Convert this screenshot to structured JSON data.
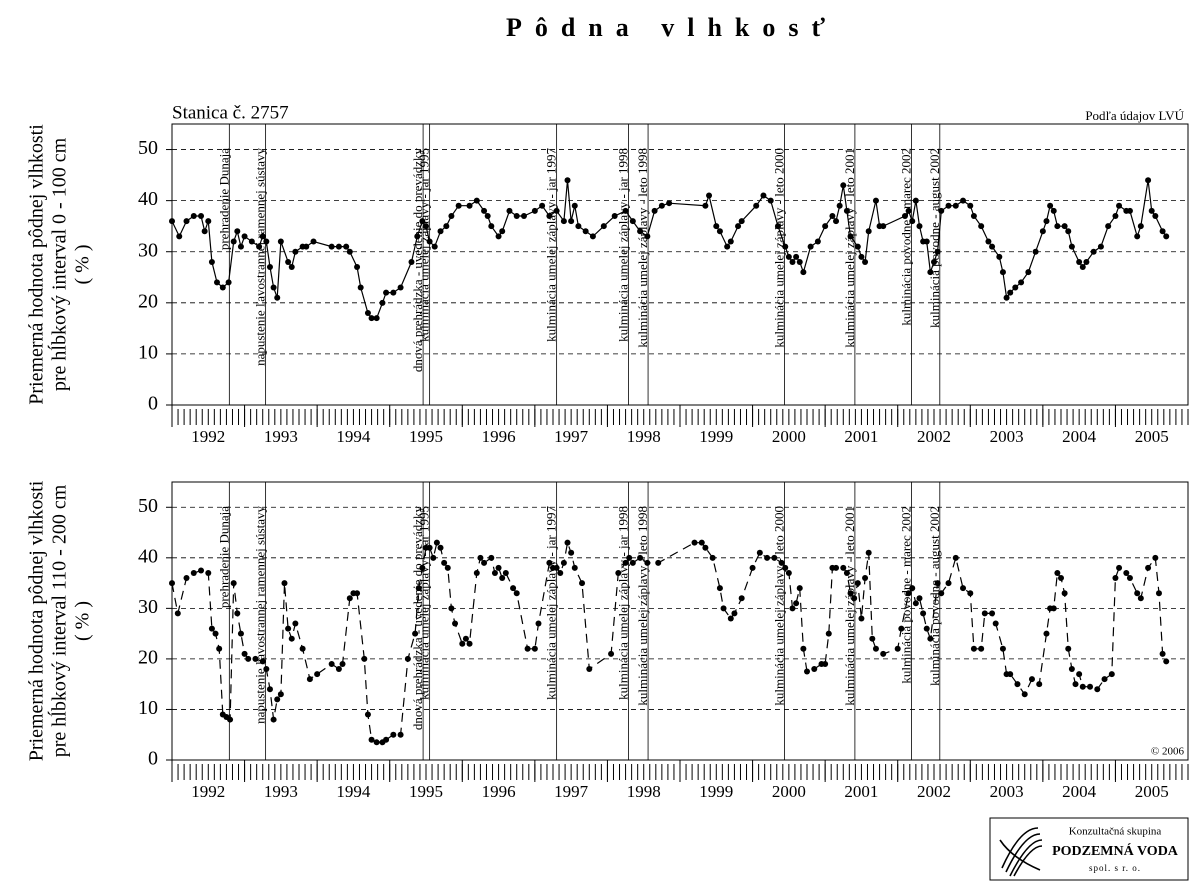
{
  "title": "Pôdna vlhkosť",
  "logo": {
    "line1": "Konzultačná skupina",
    "line2": "PODZEMNÁ VODA",
    "line3": "spol. s r. o."
  },
  "chart_data": [
    {
      "type": "line",
      "station": "Stanica č. 2757",
      "source": "Podľa údajov LVÚ",
      "ylabel": [
        "Priemerná hodnota pôdnej vlhkosti",
        "pre hĺbkový interval 0 - 100 cm",
        "( % )"
      ],
      "xlim": [
        1992,
        2006
      ],
      "xticks": [
        1992,
        1993,
        1994,
        1995,
        1996,
        1997,
        1998,
        1999,
        2000,
        2001,
        2002,
        2003,
        2004,
        2005
      ],
      "ylim": [
        0,
        55
      ],
      "yticks": [
        0,
        10,
        20,
        30,
        40,
        50
      ],
      "grid": true,
      "annotations": [
        {
          "x": 1992.79,
          "text": "prehradenie Dunaja"
        },
        {
          "x": 1993.29,
          "text": "napustenie ľavostrannej ramennej sústavy"
        },
        {
          "x": 1995.46,
          "text": "dnová prehrádzka - uvedenie do prevádzky"
        },
        {
          "x": 1995.55,
          "text": "kulminácia umelej záplavy - jar 1995"
        },
        {
          "x": 1997.3,
          "text": "kulminácia umelej záplavy - jar 1997"
        },
        {
          "x": 1998.29,
          "text": "kulminácia umelej záplavy - jar 1998"
        },
        {
          "x": 1998.56,
          "text": "kulminácia umelej záplavy - leto 1998"
        },
        {
          "x": 2000.44,
          "text": "kulminácia umelej záplavy - leto 2000"
        },
        {
          "x": 2001.41,
          "text": "kulminácia umelej záplavy - leto 2001"
        },
        {
          "x": 2002.19,
          "text": "kulminácia povodne - marec 2002"
        },
        {
          "x": 2002.58,
          "text": "kulminácia povodne - august 2002"
        }
      ],
      "series": [
        {
          "color": "#000000",
          "line_style": "solid",
          "x": [
            1992.0,
            1992.1,
            1992.2,
            1992.3,
            1992.4,
            1992.45,
            1992.5,
            1992.55,
            1992.62,
            1992.7,
            1992.78,
            1992.85,
            1992.9,
            1992.95,
            1993.0,
            1993.1,
            1993.2,
            1993.25,
            1993.3,
            1993.35,
            1993.4,
            1993.45,
            1993.5,
            1993.6,
            1993.65,
            1993.7,
            1993.8,
            1993.85,
            1993.95,
            1994.2,
            1994.3,
            1994.4,
            1994.45,
            1994.55,
            1994.6,
            1994.7,
            1994.75,
            1994.82,
            1994.9,
            1994.95,
            1995.05,
            1995.15,
            1995.3,
            1995.38,
            1995.45,
            1995.5,
            1995.55,
            1995.62,
            1995.7,
            1995.78,
            1995.85,
            1995.95,
            1996.1,
            1996.2,
            1996.3,
            1996.35,
            1996.4,
            1996.5,
            1996.55,
            1996.65,
            1996.75,
            1996.85,
            1997.0,
            1997.1,
            1997.2,
            1997.3,
            1997.4,
            1997.45,
            1997.5,
            1997.55,
            1997.6,
            1997.7,
            1997.8,
            1997.95,
            1998.1,
            1998.25,
            1998.35,
            1998.45,
            1998.55,
            1998.65,
            1998.75,
            1998.85,
            1999.35,
            1999.4,
            1999.5,
            1999.55,
            1999.65,
            1999.7,
            1999.8,
            1999.85,
            2000.05,
            2000.15,
            2000.25,
            2000.35,
            2000.45,
            2000.5,
            2000.55,
            2000.6,
            2000.65,
            2000.7,
            2000.8,
            2000.9,
            2001.0,
            2001.1,
            2001.15,
            2001.2,
            2001.25,
            2001.3,
            2001.35,
            2001.45,
            2001.5,
            2001.55,
            2001.6,
            2001.7,
            2001.75,
            2001.8,
            2002.1,
            2002.15,
            2002.2,
            2002.25,
            2002.3,
            2002.35,
            2002.4,
            2002.45,
            2002.5,
            2002.55,
            2002.6,
            2002.7,
            2002.8,
            2002.9,
            2003.0,
            2003.05,
            2003.15,
            2003.25,
            2003.3,
            2003.4,
            2003.45,
            2003.5,
            2003.55,
            2003.62,
            2003.7,
            2003.8,
            2003.9,
            2004.0,
            2004.05,
            2004.1,
            2004.15,
            2004.2,
            2004.3,
            2004.35,
            2004.4,
            2004.5,
            2004.55,
            2004.6,
            2004.7,
            2004.8,
            2004.9,
            2005.0,
            2005.05,
            2005.15,
            2005.2,
            2005.3,
            2005.35,
            2005.45,
            2005.5,
            2005.55,
            2005.65,
            2005.7
          ],
          "values": [
            36,
            33,
            36,
            37,
            37,
            34,
            36,
            28,
            24,
            23,
            24,
            32,
            34,
            31,
            33,
            32,
            31,
            33,
            32,
            27,
            23,
            21,
            32,
            28,
            27,
            30,
            31,
            31,
            32,
            31,
            31,
            31,
            30,
            27,
            23,
            18,
            17,
            17,
            20,
            22,
            22,
            23,
            28,
            33,
            36,
            35,
            32,
            31,
            34,
            35,
            37,
            39,
            39,
            40,
            38,
            37,
            35,
            33,
            34,
            38,
            37,
            37,
            38,
            39,
            37,
            38,
            36,
            44,
            36,
            39,
            35,
            34,
            33,
            35,
            37,
            38,
            36,
            34,
            33,
            38,
            39,
            39.5,
            39,
            41,
            35,
            34,
            31,
            32,
            35,
            36,
            39,
            41,
            40,
            35,
            31,
            29,
            28,
            29,
            28,
            26,
            31,
            32,
            35,
            37,
            36,
            39,
            43,
            38,
            33,
            31,
            29,
            28,
            34,
            40,
            35,
            35,
            37,
            38,
            36,
            40,
            35,
            32,
            32,
            26,
            28,
            30,
            38,
            39,
            39,
            40,
            39,
            37,
            35,
            32,
            31,
            29,
            26,
            21,
            22,
            23,
            24,
            26,
            30,
            34,
            36,
            39,
            38,
            35,
            35,
            34,
            31,
            28,
            27,
            28,
            30,
            31,
            35,
            37,
            39,
            38,
            38,
            33,
            35,
            44,
            38,
            37,
            34,
            33
          ]
        }
      ]
    },
    {
      "type": "line",
      "copyright": "© 2006",
      "ylabel": [
        "Priemerná hodnota pôdnej vlhkosti",
        "pre hĺbkový interval 110 - 200 cm",
        "( % )"
      ],
      "xlim": [
        1992,
        2006
      ],
      "xticks": [
        1992,
        1993,
        1994,
        1995,
        1996,
        1997,
        1998,
        1999,
        2000,
        2001,
        2002,
        2003,
        2004,
        2005
      ],
      "ylim": [
        0,
        55
      ],
      "yticks": [
        0,
        10,
        20,
        30,
        40,
        50
      ],
      "grid": true,
      "annotations": [
        {
          "x": 1992.79,
          "text": "prehradenie Dunaja"
        },
        {
          "x": 1993.29,
          "text": "napustenie ľavostrannej ramennej sústavy"
        },
        {
          "x": 1995.46,
          "text": "dnová prehrádzka - uvedenie do prevádzky"
        },
        {
          "x": 1995.55,
          "text": "kulminácia umelej záplavy - jar 1995"
        },
        {
          "x": 1997.3,
          "text": "kulminácia umelej záplavy - jar 1997"
        },
        {
          "x": 1998.29,
          "text": "kulminácia umelej záplavy - jar 1998"
        },
        {
          "x": 1998.56,
          "text": "kulminácia umelej záplavy - leto 1998"
        },
        {
          "x": 2000.44,
          "text": "kulminácia umelej záplavy - leto 2000"
        },
        {
          "x": 2001.41,
          "text": "kulminácia umelej záplavy - leto 2001"
        },
        {
          "x": 2002.19,
          "text": "kulminácia povodne - marec 2002"
        },
        {
          "x": 2002.58,
          "text": "kulminácia povodne - august 2002"
        }
      ],
      "series": [
        {
          "color": "#000000",
          "line_style": "dashed",
          "x": [
            1992.0,
            1992.08,
            1992.2,
            1992.3,
            1992.4,
            1992.5,
            1992.55,
            1992.6,
            1992.65,
            1992.7,
            1992.75,
            1992.8,
            1992.85,
            1992.9,
            1992.95,
            1993.0,
            1993.05,
            1993.15,
            1993.25,
            1993.3,
            1993.35,
            1993.4,
            1993.45,
            1993.5,
            1993.55,
            1993.6,
            1993.65,
            1993.7,
            1993.8,
            1993.9,
            1994.0,
            1994.2,
            1994.3,
            1994.35,
            1994.45,
            1994.5,
            1994.55,
            1994.65,
            1994.7,
            1994.75,
            1994.82,
            1994.9,
            1994.95,
            1995.05,
            1995.15,
            1995.25,
            1995.35,
            1995.4,
            1995.45,
            1995.5,
            1995.55,
            1995.6,
            1995.65,
            1995.7,
            1995.75,
            1995.8,
            1995.85,
            1995.9,
            1996.0,
            1996.05,
            1996.1,
            1996.2,
            1996.25,
            1996.3,
            1996.4,
            1996.45,
            1996.5,
            1996.55,
            1996.6,
            1996.7,
            1996.75,
            1996.9,
            1997.0,
            1997.05,
            1997.2,
            1997.25,
            1997.3,
            1997.35,
            1997.4,
            1997.45,
            1997.5,
            1997.55,
            1997.65,
            1997.75,
            1998.05,
            1998.15,
            1998.25,
            1998.3,
            1998.35,
            1998.45,
            1998.55,
            1998.7,
            1999.2,
            1999.3,
            1999.35,
            1999.45,
            1999.55,
            1999.6,
            1999.7,
            1999.75,
            1999.85,
            2000.0,
            2000.1,
            2000.2,
            2000.3,
            2000.4,
            2000.45,
            2000.5,
            2000.55,
            2000.6,
            2000.65,
            2000.7,
            2000.75,
            2000.85,
            2000.95,
            2001.0,
            2001.05,
            2001.1,
            2001.15,
            2001.25,
            2001.3,
            2001.35,
            2001.4,
            2001.45,
            2001.5,
            2001.55,
            2001.6,
            2001.65,
            2001.7,
            2001.8,
            2002.0,
            2002.05,
            2002.15,
            2002.2,
            2002.25,
            2002.3,
            2002.35,
            2002.4,
            2002.45,
            2002.55,
            2002.6,
            2002.7,
            2002.8,
            2002.9,
            2003.0,
            2003.05,
            2003.15,
            2003.2,
            2003.3,
            2003.35,
            2003.45,
            2003.5,
            2003.55,
            2003.65,
            2003.75,
            2003.85,
            2003.95,
            2004.05,
            2004.1,
            2004.15,
            2004.2,
            2004.25,
            2004.3,
            2004.35,
            2004.4,
            2004.45,
            2004.5,
            2004.55,
            2004.65,
            2004.75,
            2004.85,
            2004.95,
            2005.0,
            2005.05,
            2005.15,
            2005.2,
            2005.3,
            2005.35,
            2005.45,
            2005.55,
            2005.6,
            2005.65,
            2005.7
          ],
          "values": [
            35,
            29,
            36,
            37,
            37.5,
            37,
            26,
            25,
            22,
            9,
            8.5,
            8,
            35,
            29,
            25,
            21,
            20,
            20,
            19.5,
            18,
            14,
            8,
            12,
            13,
            35,
            26,
            24,
            27,
            22,
            16,
            17,
            19,
            18,
            19,
            32,
            33,
            33,
            20,
            9,
            4,
            3.5,
            3.5,
            4,
            5,
            5,
            20,
            25,
            34,
            38,
            42,
            42,
            40,
            43,
            42,
            39,
            38,
            30,
            27,
            23,
            24,
            23,
            37,
            40,
            39,
            40,
            37,
            38,
            36,
            37,
            34,
            33,
            22,
            22,
            27,
            39,
            38,
            38,
            37,
            39,
            43,
            41,
            38,
            35,
            18,
            21,
            37,
            39,
            40,
            39,
            40,
            39,
            39,
            43,
            43,
            42,
            40,
            34,
            30,
            28,
            29,
            32,
            38,
            41,
            40,
            40,
            39,
            38,
            37,
            30,
            31,
            34,
            22,
            17.5,
            18,
            19,
            19,
            25,
            38,
            38,
            38,
            37,
            33,
            32,
            35,
            28,
            36,
            41,
            24,
            22,
            21,
            22,
            26,
            33,
            34,
            31,
            32,
            29,
            26,
            24,
            35,
            33,
            35,
            40,
            34,
            33,
            22,
            22,
            29,
            29,
            27,
            22,
            17,
            17,
            15,
            13,
            16,
            15,
            25,
            30,
            30,
            37,
            36,
            33,
            22,
            18,
            15,
            17,
            14.5,
            14.5,
            14,
            16,
            17,
            36,
            38,
            37,
            36,
            33,
            32,
            38,
            40,
            33,
            21,
            19.5
          ]
        }
      ]
    }
  ]
}
